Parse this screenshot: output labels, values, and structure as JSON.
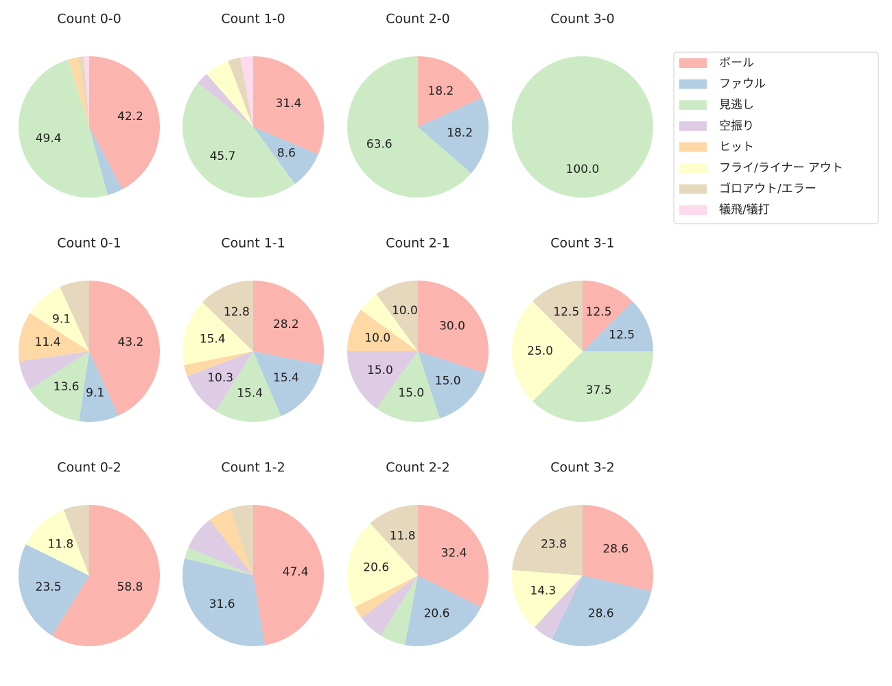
{
  "chart_data": [
    {
      "type": "pie",
      "title": "Count 0-0",
      "categories": [
        "ボール",
        "ファウル",
        "見逃し",
        "空振り",
        "ヒット",
        "フライ/ライナー アウト",
        "ゴロアウト/エラー",
        "犠飛/犠打"
      ],
      "colors": [
        "#fbb4ae",
        "#b3cde3",
        "#ccebc5",
        "#decbe4",
        "#fed9a6",
        "#ffffcc",
        "#e5d8bd",
        "#fddaec"
      ],
      "values": [
        42.2,
        3.6,
        49.4,
        0,
        2.4,
        0,
        1.2,
        1.2
      ],
      "value_labels": [
        "42.2",
        null,
        "49.4",
        null,
        null,
        null,
        null,
        null
      ]
    },
    {
      "type": "pie",
      "title": "Count 1-0",
      "categories": [
        "ボール",
        "ファウル",
        "見逃し",
        "空振り",
        "ヒット",
        "フライ/ライナー アウト",
        "ゴロアウト/エラー",
        "犠飛/犠打"
      ],
      "colors": [
        "#fbb4ae",
        "#b3cde3",
        "#ccebc5",
        "#decbe4",
        "#fed9a6",
        "#ffffcc",
        "#e5d8bd",
        "#fddaec"
      ],
      "values": [
        31.4,
        8.6,
        45.7,
        2.9,
        0,
        5.7,
        2.9,
        2.9
      ],
      "value_labels": [
        "31.4",
        "8.6",
        "45.7",
        null,
        null,
        null,
        null,
        null
      ]
    },
    {
      "type": "pie",
      "title": "Count 2-0",
      "categories": [
        "ボール",
        "ファウル",
        "見逃し",
        "空振り",
        "ヒット",
        "フライ/ライナー アウト",
        "ゴロアウト/エラー",
        "犠飛/犠打"
      ],
      "colors": [
        "#fbb4ae",
        "#b3cde3",
        "#ccebc5",
        "#decbe4",
        "#fed9a6",
        "#ffffcc",
        "#e5d8bd",
        "#fddaec"
      ],
      "values": [
        18.2,
        18.2,
        63.6,
        0,
        0,
        0,
        0,
        0
      ],
      "value_labels": [
        "18.2",
        "18.2",
        "63.6",
        null,
        null,
        null,
        null,
        null
      ]
    },
    {
      "type": "pie",
      "title": "Count 3-0",
      "categories": [
        "ボール",
        "ファウル",
        "見逃し",
        "空振り",
        "ヒット",
        "フライ/ライナー アウト",
        "ゴロアウト/エラー",
        "犠飛/犠打"
      ],
      "colors": [
        "#fbb4ae",
        "#b3cde3",
        "#ccebc5",
        "#decbe4",
        "#fed9a6",
        "#ffffcc",
        "#e5d8bd",
        "#fddaec"
      ],
      "values": [
        0,
        0,
        100,
        0,
        0,
        0,
        0,
        0
      ],
      "value_labels": [
        null,
        null,
        "100.0",
        null,
        null,
        null,
        null,
        null
      ]
    },
    {
      "type": "pie",
      "title": "Count 0-1",
      "categories": [
        "ボール",
        "ファウル",
        "見逃し",
        "空振り",
        "ヒット",
        "フライ/ライナー アウト",
        "ゴロアウト/エラー",
        "犠飛/犠打"
      ],
      "colors": [
        "#fbb4ae",
        "#b3cde3",
        "#ccebc5",
        "#decbe4",
        "#fed9a6",
        "#ffffcc",
        "#e5d8bd",
        "#fddaec"
      ],
      "values": [
        43.2,
        9.1,
        13.6,
        6.8,
        11.4,
        9.1,
        6.8,
        0
      ],
      "value_labels": [
        "43.2",
        "9.1",
        "13.6",
        null,
        "11.4",
        "9.1",
        null,
        null
      ]
    },
    {
      "type": "pie",
      "title": "Count 1-1",
      "categories": [
        "ボール",
        "ファウル",
        "見逃し",
        "空振り",
        "ヒット",
        "フライ/ライナー アウト",
        "ゴロアウト/エラー",
        "犠飛/犠打"
      ],
      "colors": [
        "#fbb4ae",
        "#b3cde3",
        "#ccebc5",
        "#decbe4",
        "#fed9a6",
        "#ffffcc",
        "#e5d8bd",
        "#fddaec"
      ],
      "values": [
        28.2,
        15.4,
        15.4,
        10.3,
        2.6,
        15.4,
        12.8,
        0
      ],
      "value_labels": [
        "28.2",
        "15.4",
        "15.4",
        "10.3",
        null,
        "15.4",
        "12.8",
        null
      ]
    },
    {
      "type": "pie",
      "title": "Count 2-1",
      "categories": [
        "ボール",
        "ファウル",
        "見逃し",
        "空振り",
        "ヒット",
        "フライ/ライナー アウト",
        "ゴロアウト/エラー",
        "犠飛/犠打"
      ],
      "colors": [
        "#fbb4ae",
        "#b3cde3",
        "#ccebc5",
        "#decbe4",
        "#fed9a6",
        "#ffffcc",
        "#e5d8bd",
        "#fddaec"
      ],
      "values": [
        30,
        15,
        15,
        15,
        10,
        5,
        10,
        0
      ],
      "value_labels": [
        "30.0",
        "15.0",
        "15.0",
        "15.0",
        "10.0",
        null,
        "10.0",
        null
      ]
    },
    {
      "type": "pie",
      "title": "Count 3-1",
      "categories": [
        "ボール",
        "ファウル",
        "見逃し",
        "空振り",
        "ヒット",
        "フライ/ライナー アウト",
        "ゴロアウト/エラー",
        "犠飛/犠打"
      ],
      "colors": [
        "#fbb4ae",
        "#b3cde3",
        "#ccebc5",
        "#decbe4",
        "#fed9a6",
        "#ffffcc",
        "#e5d8bd",
        "#fddaec"
      ],
      "values": [
        12.5,
        12.5,
        37.5,
        0,
        0,
        25,
        12.5,
        0
      ],
      "value_labels": [
        "12.5",
        "12.5",
        "37.5",
        null,
        null,
        "25.0",
        "12.5",
        null
      ]
    },
    {
      "type": "pie",
      "title": "Count 0-2",
      "categories": [
        "ボール",
        "ファウル",
        "見逃し",
        "空振り",
        "ヒット",
        "フライ/ライナー アウト",
        "ゴロアウト/エラー",
        "犠飛/犠打"
      ],
      "colors": [
        "#fbb4ae",
        "#b3cde3",
        "#ccebc5",
        "#decbe4",
        "#fed9a6",
        "#ffffcc",
        "#e5d8bd",
        "#fddaec"
      ],
      "values": [
        58.8,
        23.5,
        0,
        0,
        0,
        11.8,
        5.9,
        0
      ],
      "value_labels": [
        "58.8",
        "23.5",
        null,
        null,
        null,
        "11.8",
        null,
        null
      ]
    },
    {
      "type": "pie",
      "title": "Count 1-2",
      "categories": [
        "ボール",
        "ファウル",
        "見逃し",
        "空振り",
        "ヒット",
        "フライ/ライナー アウト",
        "ゴロアウト/エラー",
        "犠飛/犠打"
      ],
      "colors": [
        "#fbb4ae",
        "#b3cde3",
        "#ccebc5",
        "#decbe4",
        "#fed9a6",
        "#ffffcc",
        "#e5d8bd",
        "#fddaec"
      ],
      "values": [
        47.4,
        31.6,
        2.6,
        7.9,
        5.3,
        0,
        5.3,
        0
      ],
      "value_labels": [
        "47.4",
        "31.6",
        null,
        null,
        null,
        null,
        null,
        null
      ]
    },
    {
      "type": "pie",
      "title": "Count 2-2",
      "categories": [
        "ボール",
        "ファウル",
        "見逃し",
        "空振り",
        "ヒット",
        "フライ/ライナー アウト",
        "ゴロアウト/エラー",
        "犠飛/犠打"
      ],
      "colors": [
        "#fbb4ae",
        "#b3cde3",
        "#ccebc5",
        "#decbe4",
        "#fed9a6",
        "#ffffcc",
        "#e5d8bd",
        "#fddaec"
      ],
      "values": [
        32.4,
        20.6,
        5.9,
        5.9,
        2.9,
        20.6,
        11.8,
        0
      ],
      "value_labels": [
        "32.4",
        "20.6",
        null,
        null,
        null,
        "20.6",
        "11.8",
        null
      ]
    },
    {
      "type": "pie",
      "title": "Count 3-2",
      "categories": [
        "ボール",
        "ファウル",
        "見逃し",
        "空振り",
        "ヒット",
        "フライ/ライナー アウト",
        "ゴロアウト/エラー",
        "犠飛/犠打"
      ],
      "colors": [
        "#fbb4ae",
        "#b3cde3",
        "#ccebc5",
        "#decbe4",
        "#fed9a6",
        "#ffffcc",
        "#e5d8bd",
        "#fddaec"
      ],
      "values": [
        28.6,
        28.6,
        0,
        4.8,
        0,
        14.3,
        23.8,
        0
      ],
      "value_labels": [
        "28.6",
        "28.6",
        null,
        null,
        null,
        "14.3",
        "23.8",
        null
      ]
    }
  ]
}
